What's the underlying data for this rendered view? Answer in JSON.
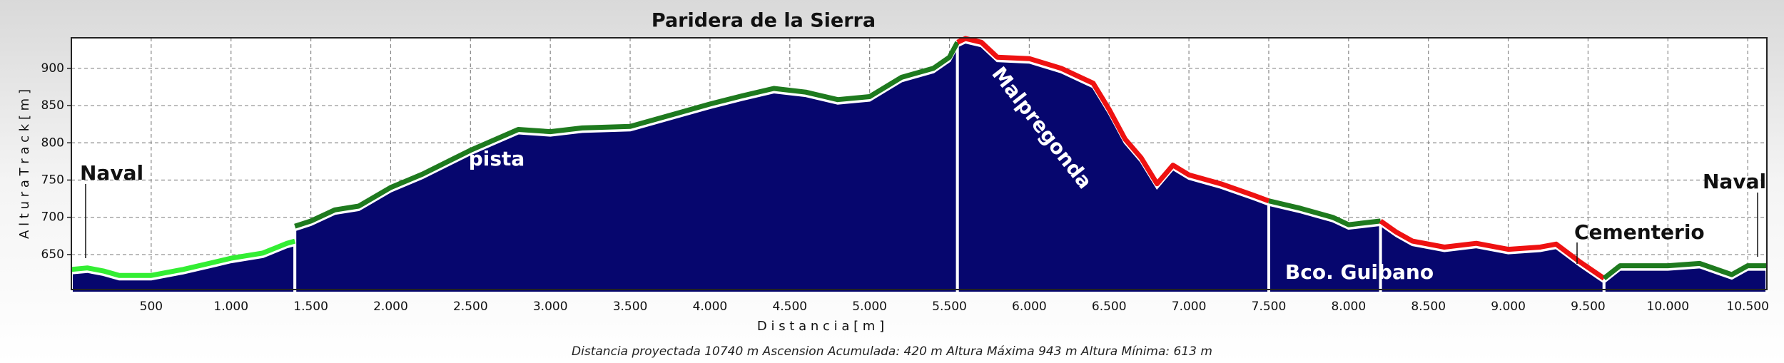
{
  "chart_data": {
    "type": "area",
    "title": "Paridera de la Sierra",
    "x_label": "D i s t a n c i a   [ m ]",
    "y_label": "A l t u r a   T r a c k   [ m ]",
    "footer": "Distancia proyectada 10740 m   Ascension Acumulada: 420 m   Altura Máxima 943 m   Altura Mínima: 613 m",
    "fill": "#06066e",
    "grid": true,
    "xlim": [
      0,
      10620
    ],
    "ylim": [
      603,
      941
    ],
    "xticks": [
      500,
      {
        "value": 1000,
        "label": "1.000"
      },
      {
        "value": 1500,
        "label": "1.500"
      },
      {
        "value": 2000,
        "label": "2.000"
      },
      {
        "value": 2500,
        "label": "2.500"
      },
      {
        "value": 3000,
        "label": "3.000"
      },
      {
        "value": 3500,
        "label": "3.500"
      },
      {
        "value": 4000,
        "label": "4.000"
      },
      {
        "value": 4500,
        "label": "4.500"
      },
      {
        "value": 5000,
        "label": "5.000"
      },
      {
        "value": 5500,
        "label": "5.500"
      },
      {
        "value": 6000,
        "label": "6.000"
      },
      {
        "value": 6500,
        "label": "6.500"
      },
      {
        "value": 7000,
        "label": "7.000"
      },
      {
        "value": 7500,
        "label": "7.500"
      },
      {
        "value": 8000,
        "label": "8.000"
      },
      {
        "value": 8500,
        "label": "8.500"
      },
      {
        "value": 9000,
        "label": "9.000"
      },
      {
        "value": 9500,
        "label": "9.500"
      },
      {
        "value": 10000,
        "label": "10.000"
      },
      {
        "value": 10500,
        "label": "10.500"
      }
    ],
    "yticks": [
      650,
      700,
      750,
      800,
      850,
      900
    ],
    "series": [
      {
        "color": "#33ee33",
        "x": [
          0,
          100,
          200,
          300,
          500,
          700,
          900,
          1000,
          1200,
          1350,
          1400
        ],
        "values": [
          630,
          632,
          628,
          622,
          622,
          630,
          640,
          645,
          652,
          665,
          668
        ]
      },
      {
        "color": "#1e7a1e",
        "x": [
          1400,
          1500,
          1650,
          1800,
          2000,
          2200,
          2500,
          2800,
          3000,
          3200,
          3500,
          3800,
          4000,
          4200,
          4400,
          4600,
          4800,
          5000,
          5200,
          5400,
          5500,
          5550
        ],
        "values": [
          688,
          695,
          710,
          715,
          740,
          758,
          790,
          818,
          815,
          820,
          822,
          840,
          852,
          863,
          873,
          868,
          858,
          862,
          888,
          900,
          915,
          935
        ]
      },
      {
        "color": "#ee1111",
        "x": [
          5550,
          5600,
          5700,
          5800,
          6000,
          6200,
          6400,
          6500,
          6600,
          6700,
          6800,
          6900,
          7000,
          7200,
          7400,
          7500
        ],
        "values": [
          935,
          940,
          935,
          915,
          913,
          900,
          880,
          845,
          805,
          780,
          745,
          770,
          757,
          745,
          730,
          722
        ]
      },
      {
        "color": "#1e7a1e",
        "x": [
          7500,
          7700,
          7900,
          8000,
          8200
        ],
        "values": [
          722,
          712,
          700,
          690,
          695
        ]
      },
      {
        "color": "#ee1111",
        "x": [
          8200,
          8300,
          8400,
          8600,
          8800,
          9000,
          9200,
          9300,
          9450,
          9600
        ],
        "values": [
          695,
          680,
          668,
          660,
          665,
          657,
          660,
          664,
          640,
          618
        ]
      },
      {
        "color": "#1e7a1e",
        "x": [
          9600,
          9700,
          10000,
          10200,
          10400,
          10500,
          10620
        ],
        "values": [
          618,
          635,
          635,
          638,
          623,
          635,
          635
        ]
      }
    ],
    "annotations": [
      "Naval",
      "pista",
      "Malpregonda",
      "Bco. Guibano",
      "Cementerio",
      "Naval"
    ]
  }
}
